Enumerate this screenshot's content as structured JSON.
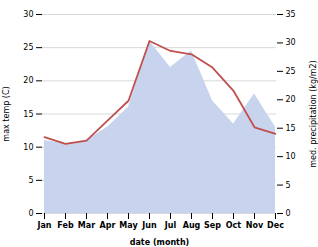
{
  "chart_data": {
    "type": "line",
    "x_label": "date (month)",
    "y_label": "max temp (C)",
    "y2_label": "med. precipitation (kg/m2)",
    "categories": [
      "Jan",
      "Feb",
      "Mar",
      "Apr",
      "May",
      "Jun",
      "Jul",
      "Aug",
      "Sep",
      "Oct",
      "Nov",
      "Dec"
    ],
    "series": [
      {
        "type": "area",
        "color": "#c8d4ee",
        "values": [
          11.0,
          10.5,
          11.0,
          13.0,
          16.0,
          26.0,
          22.0,
          24.5,
          17.0,
          13.5,
          18.0,
          13.0
        ]
      },
      {
        "type": "line",
        "color": "#c0504d",
        "values": [
          11.5,
          10.5,
          11.0,
          14.0,
          17.0,
          26.0,
          24.5,
          24.0,
          22.0,
          18.5,
          13.0,
          12.0
        ]
      }
    ],
    "ylim": [
      0,
      30
    ],
    "yticks": [
      0,
      5,
      10,
      15,
      20,
      25,
      30
    ],
    "y2lim": [
      0,
      35
    ],
    "y2ticks": [
      0,
      5,
      10,
      15,
      20,
      25,
      30,
      35
    ],
    "grid": true
  }
}
